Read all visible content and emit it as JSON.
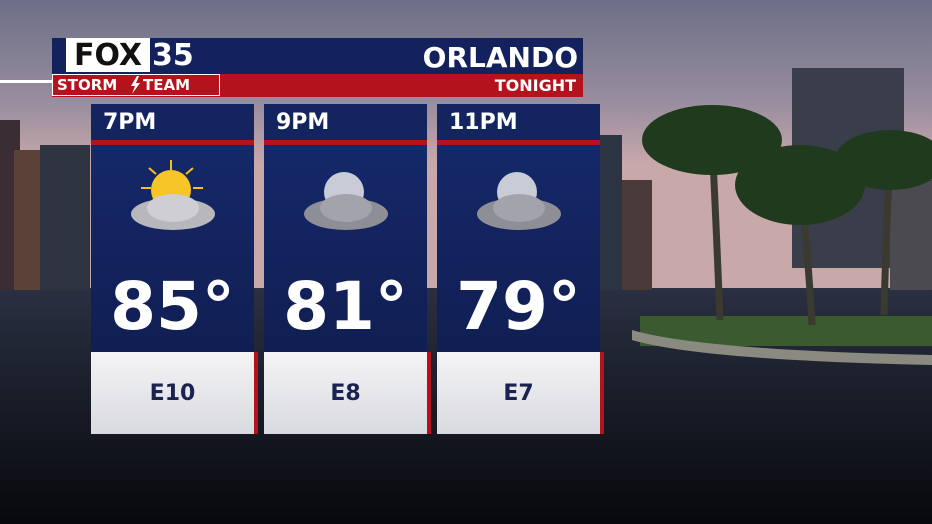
{
  "header": {
    "logo": {
      "network": "FOX",
      "channel": "35",
      "team_left": "STORM",
      "team_right": "TEAM"
    },
    "city": "ORLANDO",
    "period": "TONIGHT"
  },
  "forecast": [
    {
      "time": "7PM",
      "temperature": "85°",
      "wind": "E10"
    },
    {
      "time": "9PM",
      "temperature": "81°",
      "wind": "E8"
    },
    {
      "time": "11PM",
      "temperature": "79°",
      "wind": "E7"
    }
  ]
}
